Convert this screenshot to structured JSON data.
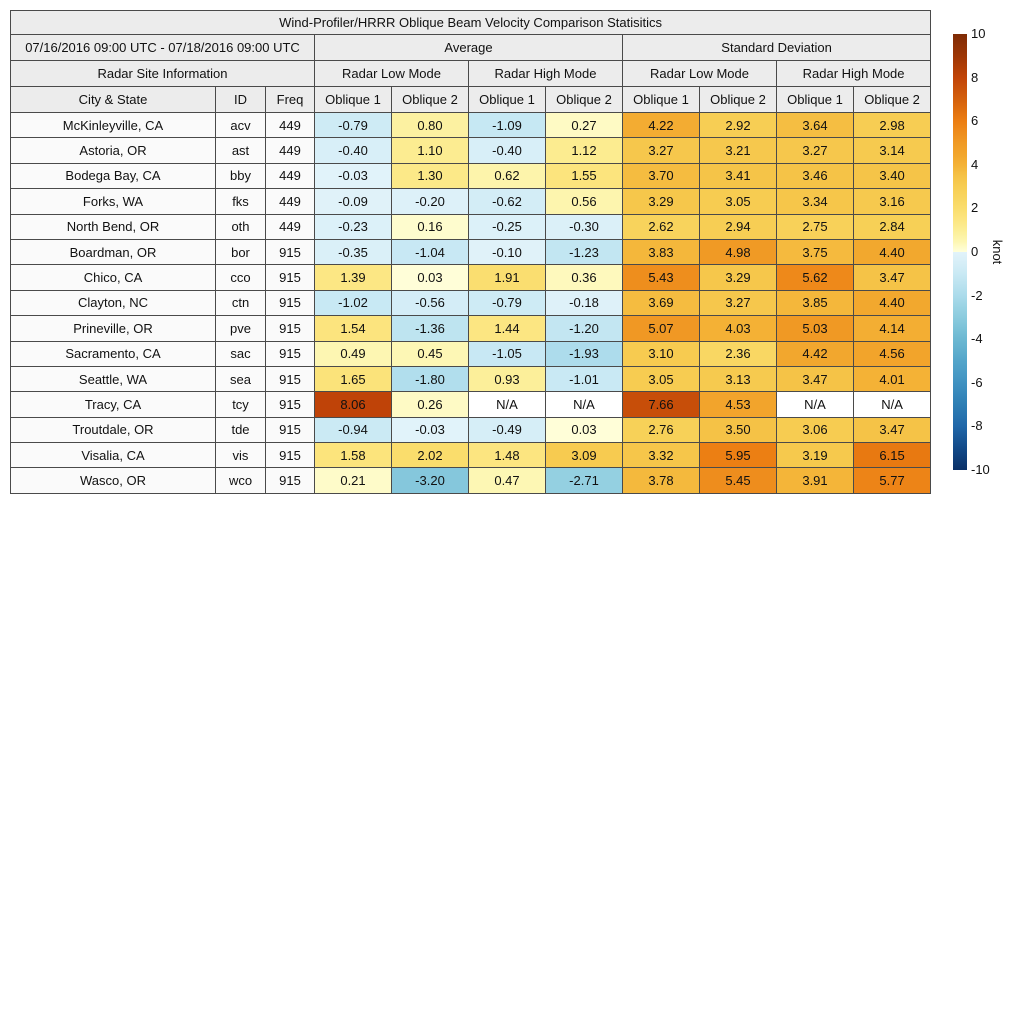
{
  "chart_data": {
    "type": "heatmap",
    "title": "Wind-Profiler/HRRR Oblique Beam Velocity Comparison Statisitics",
    "header": {
      "date_range": "07/16/2016 09:00 UTC - 07/18/2016 09:00 UTC",
      "group_average": "Average",
      "group_std": "Standard Deviation",
      "site_info": "Radar Site Information",
      "low_mode": "Radar Low Mode",
      "high_mode": "Radar High Mode",
      "col_city": "City & State",
      "col_id": "ID",
      "col_freq": "Freq",
      "col_oblique1": "Oblique 1",
      "col_oblique2": "Oblique 2"
    },
    "columns": [
      "Average Radar Low Mode Oblique 1",
      "Average Radar Low Mode Oblique 2",
      "Average Radar High Mode Oblique 1",
      "Average Radar High Mode Oblique 2",
      "Std Dev Radar Low Mode Oblique 1",
      "Std Dev Radar Low Mode Oblique 2",
      "Std Dev Radar High Mode Oblique 1",
      "Std Dev Radar High Mode Oblique 2"
    ],
    "na_text": "N/A",
    "stations": [
      {
        "city": "McKinleyville, CA",
        "id": "acv",
        "freq": "449",
        "values": [
          "-0.79",
          "0.80",
          "-1.09",
          "0.27",
          "4.22",
          "2.92",
          "3.64",
          "2.98"
        ]
      },
      {
        "city": "Astoria, OR",
        "id": "ast",
        "freq": "449",
        "values": [
          "-0.40",
          "1.10",
          "-0.40",
          "1.12",
          "3.27",
          "3.21",
          "3.27",
          "3.14"
        ]
      },
      {
        "city": "Bodega Bay, CA",
        "id": "bby",
        "freq": "449",
        "values": [
          "-0.03",
          "1.30",
          "0.62",
          "1.55",
          "3.70",
          "3.41",
          "3.46",
          "3.40"
        ]
      },
      {
        "city": "Forks, WA",
        "id": "fks",
        "freq": "449",
        "values": [
          "-0.09",
          "-0.20",
          "-0.62",
          "0.56",
          "3.29",
          "3.05",
          "3.34",
          "3.16"
        ]
      },
      {
        "city": "North Bend, OR",
        "id": "oth",
        "freq": "449",
        "values": [
          "-0.23",
          "0.16",
          "-0.25",
          "-0.30",
          "2.62",
          "2.94",
          "2.75",
          "2.84"
        ]
      },
      {
        "city": "Boardman, OR",
        "id": "bor",
        "freq": "915",
        "values": [
          "-0.35",
          "-1.04",
          "-0.10",
          "-1.23",
          "3.83",
          "4.98",
          "3.75",
          "4.40"
        ]
      },
      {
        "city": "Chico, CA",
        "id": "cco",
        "freq": "915",
        "values": [
          "1.39",
          "0.03",
          "1.91",
          "0.36",
          "5.43",
          "3.29",
          "5.62",
          "3.47"
        ]
      },
      {
        "city": "Clayton, NC",
        "id": "ctn",
        "freq": "915",
        "values": [
          "-1.02",
          "-0.56",
          "-0.79",
          "-0.18",
          "3.69",
          "3.27",
          "3.85",
          "4.40"
        ]
      },
      {
        "city": "Prineville, OR",
        "id": "pve",
        "freq": "915",
        "values": [
          "1.54",
          "-1.36",
          "1.44",
          "-1.20",
          "5.07",
          "4.03",
          "5.03",
          "4.14"
        ]
      },
      {
        "city": "Sacramento, CA",
        "id": "sac",
        "freq": "915",
        "values": [
          "0.49",
          "0.45",
          "-1.05",
          "-1.93",
          "3.10",
          "2.36",
          "4.42",
          "4.56"
        ]
      },
      {
        "city": "Seattle, WA",
        "id": "sea",
        "freq": "915",
        "values": [
          "1.65",
          "-1.80",
          "0.93",
          "-1.01",
          "3.05",
          "3.13",
          "3.47",
          "4.01"
        ]
      },
      {
        "city": "Tracy, CA",
        "id": "tcy",
        "freq": "915",
        "values": [
          "8.06",
          "0.26",
          null,
          null,
          "7.66",
          "4.53",
          null,
          null
        ]
      },
      {
        "city": "Troutdale, OR",
        "id": "tde",
        "freq": "915",
        "values": [
          "-0.94",
          "-0.03",
          "-0.49",
          "0.03",
          "2.76",
          "3.50",
          "3.06",
          "3.47"
        ]
      },
      {
        "city": "Visalia, CA",
        "id": "vis",
        "freq": "915",
        "values": [
          "1.58",
          "2.02",
          "1.48",
          "3.09",
          "3.32",
          "5.95",
          "3.19",
          "6.15"
        ]
      },
      {
        "city": "Wasco, OR",
        "id": "wco",
        "freq": "915",
        "values": [
          "0.21",
          "-3.20",
          "0.47",
          "-2.71",
          "3.78",
          "5.45",
          "3.91",
          "5.77"
        ]
      }
    ],
    "colorbar": {
      "label": "knot",
      "min": -10,
      "max": 10,
      "ticks": [
        "10",
        "8",
        "6",
        "4",
        "2",
        "0",
        "-2",
        "-4",
        "-6",
        "-8",
        "-10"
      ]
    },
    "colormap": {
      "na_bg": "#ffffff",
      "positive_stops": [
        [
          0,
          "#ffffdb"
        ],
        [
          0.5,
          "#fdf6b1"
        ],
        [
          1,
          "#fcee96"
        ],
        [
          1.5,
          "#fce57f"
        ],
        [
          2,
          "#fadd6d"
        ],
        [
          2.5,
          "#f8d55f"
        ],
        [
          3,
          "#f7cd52"
        ],
        [
          3.5,
          "#f5c246"
        ],
        [
          4,
          "#f4b236"
        ],
        [
          4.5,
          "#f2a52c"
        ],
        [
          5,
          "#f09a25"
        ],
        [
          5.5,
          "#ee8c1c"
        ],
        [
          6,
          "#ec7e12"
        ],
        [
          6.5,
          "#e06f0e"
        ],
        [
          7,
          "#d4600c"
        ],
        [
          7.5,
          "#ca520a"
        ],
        [
          8,
          "#c14408"
        ],
        [
          8.5,
          "#af3d06"
        ],
        [
          9,
          "#9d3605"
        ],
        [
          10,
          "#7e2b05"
        ]
      ],
      "negative_stops": [
        [
          0,
          "#e2f3fa"
        ],
        [
          -0.5,
          "#d6eef7"
        ],
        [
          -1,
          "#c9e9f4"
        ],
        [
          -1.5,
          "#bae2ef"
        ],
        [
          -2,
          "#abdbeb"
        ],
        [
          -2.5,
          "#9ad3e4"
        ],
        [
          -3,
          "#8bcbde"
        ],
        [
          -3.5,
          "#7bc2d8"
        ],
        [
          -4,
          "#6cb8d2"
        ],
        [
          -5,
          "#53a5ca"
        ],
        [
          -6,
          "#4092c1"
        ],
        [
          -7,
          "#2e7eb4"
        ],
        [
          -8,
          "#2067a9"
        ],
        [
          -9,
          "#124a89"
        ],
        [
          -10,
          "#0a3067"
        ]
      ]
    }
  }
}
